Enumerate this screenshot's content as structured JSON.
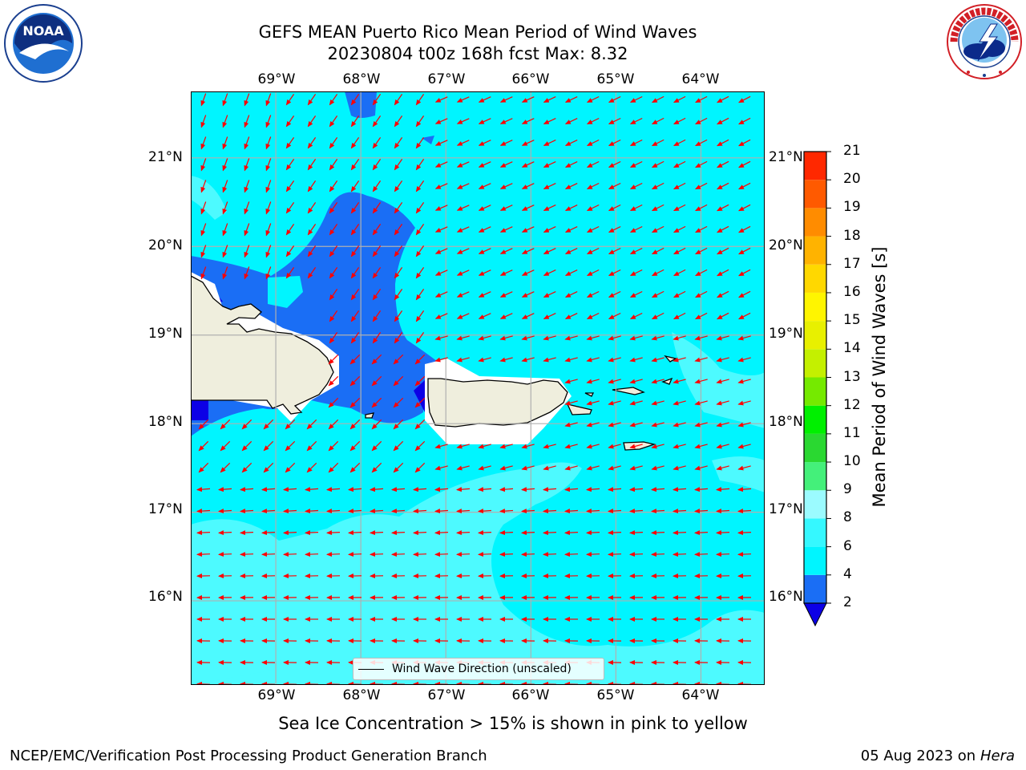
{
  "title": {
    "line1": "GEFS MEAN Puerto Rico Mean Period of Wind Waves",
    "line2": "20230804 t00z 168h fcst   Max: 8.32"
  },
  "logos": {
    "left": {
      "name": "noaa-logo",
      "text": "NOAA"
    },
    "right": {
      "name": "nws-logo",
      "text": "NATIONAL WEATHER SERVICE"
    }
  },
  "map": {
    "projection": "lon-lat",
    "lon_range": [
      -70.0,
      -63.25
    ],
    "lat_range": [
      15.05,
      21.75
    ],
    "lon_labels": [
      "69°W",
      "68°W",
      "67°W",
      "66°W",
      "65°W",
      "64°W"
    ],
    "lat_labels": [
      "21°N",
      "20°N",
      "19°N",
      "18°N",
      "17°N",
      "16°N"
    ],
    "grid": true,
    "land_color": "#efeedd",
    "wind_wave_arrow_color": "#ff0000",
    "predominant_direction": "from east-northeast"
  },
  "legend": {
    "label": "Wind Wave Direction (unscaled)",
    "placement": "bottom-center"
  },
  "colorbar": {
    "label": "Mean Period of Wind Waves [s]",
    "ticks": [
      "2",
      "4",
      "6",
      "8",
      "9",
      "10",
      "11",
      "12",
      "13",
      "14",
      "15",
      "16",
      "17",
      "18",
      "19",
      "20",
      "21"
    ],
    "colors": [
      "#1a6ef5",
      "#00f5ff",
      "#35f8ff",
      "#9bfbff",
      "#44f07a",
      "#2ad831",
      "#00f000",
      "#75ea00",
      "#c4f000",
      "#e8f000",
      "#fff500",
      "#ffd800",
      "#ffb300",
      "#ff8c00",
      "#ff5a00",
      "#ff2800",
      "#ff0000"
    ],
    "under_color": "#0c00e6"
  },
  "subtitle": "Sea Ice Concentration > 15% is shown in pink to yellow",
  "footer": {
    "left": "NCEP/EMC/Verification Post Processing Product Generation Branch",
    "right_date": "05 Aug 2023 on",
    "right_machine": "Hera"
  }
}
